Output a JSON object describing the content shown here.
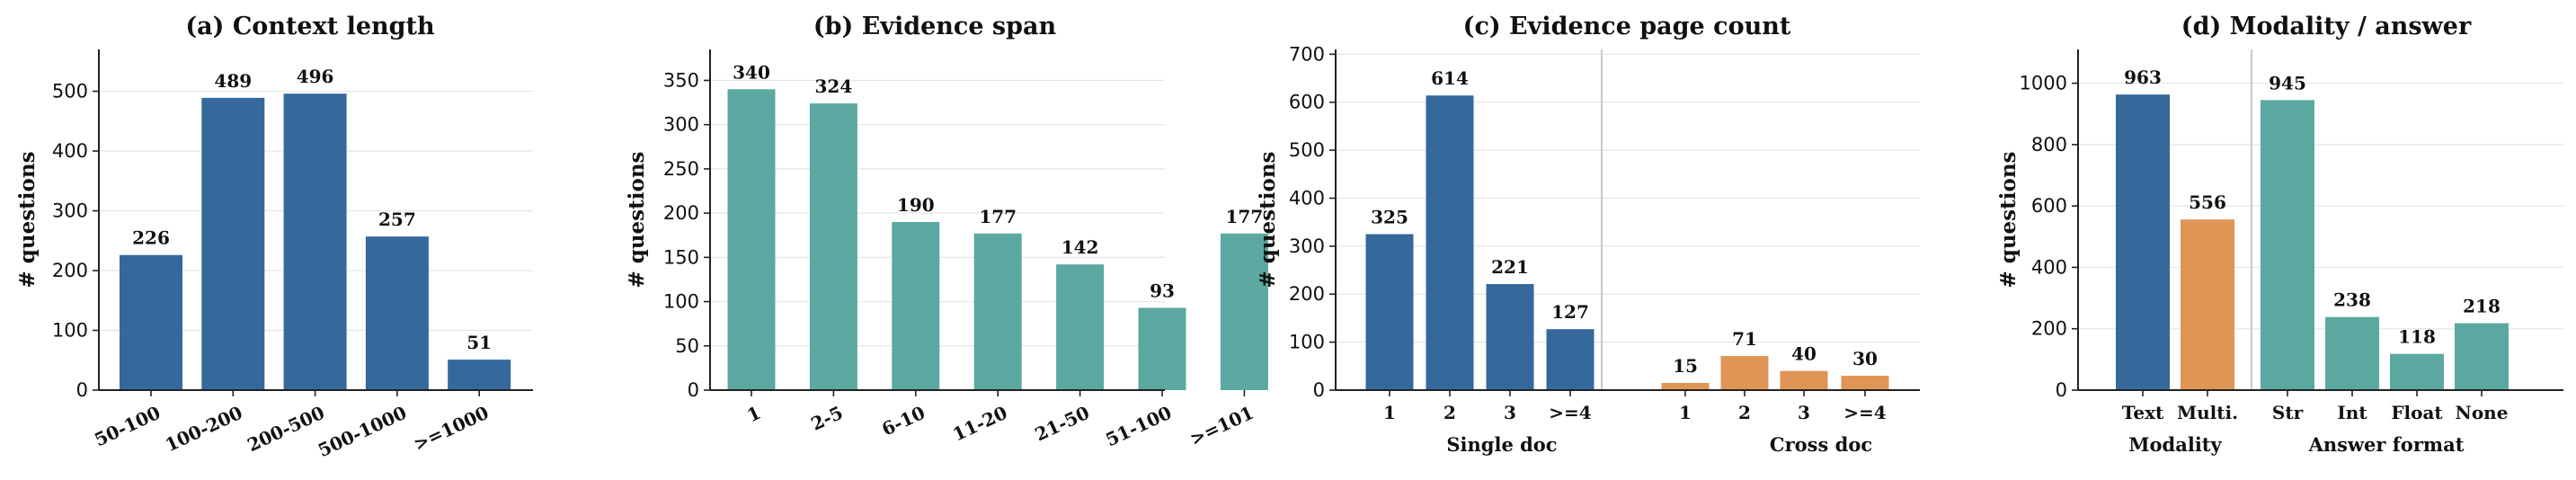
{
  "colors": {
    "blue": "#35689b",
    "teal": "#5ba8a0",
    "orange": "#de9556",
    "axis": "#222222",
    "grid": "#e6e6e6",
    "divider": "#c8c8c8"
  },
  "chart_data": [
    {
      "type": "bar",
      "title": "(a) Context length",
      "ylabel": "# questions",
      "xlabel": "",
      "ylim": [
        0,
        570
      ],
      "yticks": [
        0,
        100,
        200,
        300,
        400,
        500
      ],
      "grid": "y",
      "categories": [
        "50-100",
        "100-200",
        "200-500",
        "500-1000",
        ">=1000"
      ],
      "values": [
        226,
        489,
        496,
        257,
        51
      ],
      "bar_color": "blue",
      "xtick_rotation": -25
    },
    {
      "type": "bar",
      "title": "(b) Evidence span",
      "ylabel": "# questions",
      "xlabel": "",
      "ylim": [
        0,
        385
      ],
      "yticks": [
        0,
        50,
        100,
        150,
        200,
        250,
        300,
        350
      ],
      "grid": "y",
      "categories": [
        "1",
        "2-5",
        "6-10",
        "11-20",
        "21-50",
        "51-100",
        ">=101"
      ],
      "values": [
        340,
        324,
        190,
        177,
        142,
        93,
        177
      ],
      "bar_color": "teal",
      "xtick_rotation": -25
    },
    {
      "type": "bar",
      "title": "(c) Evidence page count",
      "ylabel": "# questions",
      "xlabel": "",
      "ylim": [
        0,
        710
      ],
      "yticks": [
        0,
        100,
        200,
        300,
        400,
        500,
        600,
        700
      ],
      "grid": "y",
      "groups": [
        {
          "name": "Single doc",
          "categories": [
            "1",
            "2",
            "3",
            ">=4"
          ],
          "values": [
            325,
            614,
            221,
            127
          ],
          "bar_color": "blue"
        },
        {
          "name": "Cross doc",
          "categories": [
            "1",
            "2",
            "3",
            ">=4"
          ],
          "values": [
            15,
            71,
            40,
            30
          ],
          "bar_color": "orange"
        }
      ]
    },
    {
      "type": "bar",
      "title": "(d) Modality / answer",
      "ylabel": "# questions",
      "xlabel": "",
      "ylim": [
        0,
        1110
      ],
      "yticks": [
        0,
        200,
        400,
        600,
        800,
        1000
      ],
      "grid": "y",
      "groups": [
        {
          "name": "Modality",
          "categories": [
            "Text",
            "Multi."
          ],
          "values": [
            963,
            556
          ],
          "bar_colors": [
            "blue",
            "orange"
          ]
        },
        {
          "name": "Answer format",
          "categories": [
            "Str",
            "Int",
            "Float",
            "None"
          ],
          "values": [
            945,
            238,
            118,
            218
          ],
          "bar_colors": [
            "teal",
            "teal",
            "teal",
            "teal"
          ]
        }
      ]
    }
  ]
}
